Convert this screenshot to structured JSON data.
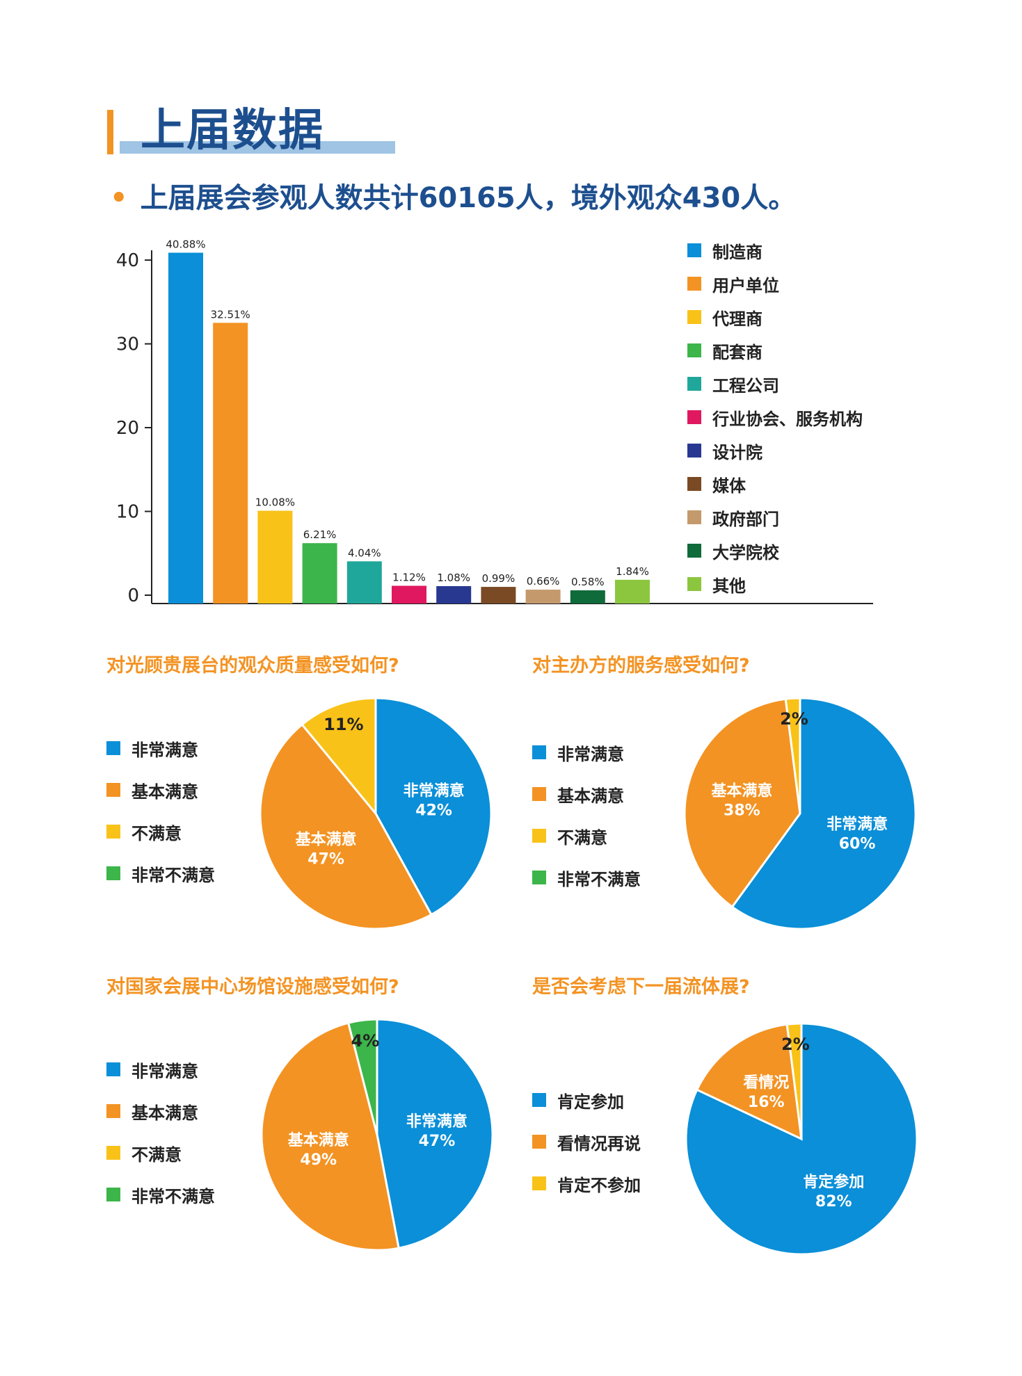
{
  "header": {
    "title": "上届数据"
  },
  "summary": {
    "bullet": "•",
    "text": "上届展会参观人数共计60165人，境外观众430人。"
  },
  "colors": {
    "accent": "#f39323",
    "heading": "#1d4f8f"
  },
  "chart_data": [
    {
      "type": "bar",
      "categories": [
        "制造商",
        "用户单位",
        "代理商",
        "配套商",
        "工程公司",
        "行业协会、服务机构",
        "设计院",
        "媒体",
        "政府部门",
        "大学院校",
        "其他"
      ],
      "values": [
        40.88,
        32.51,
        10.08,
        6.21,
        4.04,
        1.12,
        1.08,
        0.99,
        0.66,
        0.58,
        1.84
      ],
      "labels": [
        "40.88%",
        "32.51%",
        "10.08%",
        "6.21%",
        "4.04%",
        "1.12%",
        "1.08%",
        "0.99%",
        "0.66%",
        "0.58%",
        "1.84%"
      ],
      "colors": [
        "#0a8fd8",
        "#f39323",
        "#f9c218",
        "#3cb54a",
        "#1fa79b",
        "#e0185f",
        "#283891",
        "#7a4a24",
        "#c49a6c",
        "#0f6b3a",
        "#8cc63f"
      ],
      "yticks": [
        0,
        10,
        20,
        30,
        40
      ],
      "ylim": [
        0,
        42
      ],
      "legend": "right"
    },
    {
      "type": "pie",
      "title": "对光顾贵展台的观众质量感受如何?",
      "legend": [
        "非常满意",
        "基本满意",
        "不满意",
        "非常不满意"
      ],
      "legend_colors": [
        "#0a8fd8",
        "#f39323",
        "#f9c218",
        "#3cb54a"
      ],
      "slices": [
        {
          "label": "非常满意",
          "value": 42,
          "text": "非常满意",
          "pct": "42%",
          "color": "#0a8fd8"
        },
        {
          "label": "基本满意",
          "value": 47,
          "text": "基本满意",
          "pct": "47%",
          "color": "#f39323"
        },
        {
          "label": "不满意",
          "value": 11,
          "text": "",
          "pct": "11%",
          "color": "#f9c218"
        }
      ]
    },
    {
      "type": "pie",
      "title": "对主办方的服务感受如何?",
      "legend": [
        "非常满意",
        "基本满意",
        "不满意",
        "非常不满意"
      ],
      "legend_colors": [
        "#0a8fd8",
        "#f39323",
        "#f9c218",
        "#3cb54a"
      ],
      "slices": [
        {
          "label": "非常满意",
          "value": 60,
          "text": "非常满意",
          "pct": "60%",
          "color": "#0a8fd8"
        },
        {
          "label": "基本满意",
          "value": 38,
          "text": "基本满意",
          "pct": "38%",
          "color": "#f39323"
        },
        {
          "label": "不满意",
          "value": 2,
          "text": "",
          "pct": "2%",
          "color": "#f9c218"
        }
      ]
    },
    {
      "type": "pie",
      "title": "对国家会展中心场馆设施感受如何?",
      "legend": [
        "非常满意",
        "基本满意",
        "不满意",
        "非常不满意"
      ],
      "legend_colors": [
        "#0a8fd8",
        "#f39323",
        "#f9c218",
        "#3cb54a"
      ],
      "slices": [
        {
          "label": "非常满意",
          "value": 47,
          "text": "非常满意",
          "pct": "47%",
          "color": "#0a8fd8"
        },
        {
          "label": "基本满意",
          "value": 49,
          "text": "基本满意",
          "pct": "49%",
          "color": "#f39323"
        },
        {
          "label": "非常不满意",
          "value": 4,
          "text": "",
          "pct": "4%",
          "color": "#3cb54a"
        }
      ]
    },
    {
      "type": "pie",
      "title": "是否会考虑下一届流体展?",
      "legend": [
        "肯定参加",
        "看情况再说",
        "肯定不参加"
      ],
      "legend_colors": [
        "#0a8fd8",
        "#f39323",
        "#f9c218"
      ],
      "slices": [
        {
          "label": "肯定参加",
          "value": 82,
          "text": "肯定参加",
          "pct": "82%",
          "color": "#0a8fd8"
        },
        {
          "label": "看情况",
          "value": 16,
          "text": "看情况",
          "pct": "16%",
          "color": "#f39323"
        },
        {
          "label": "肯定不参加",
          "value": 2,
          "text": "",
          "pct": "2%",
          "color": "#f9c218"
        }
      ]
    }
  ]
}
